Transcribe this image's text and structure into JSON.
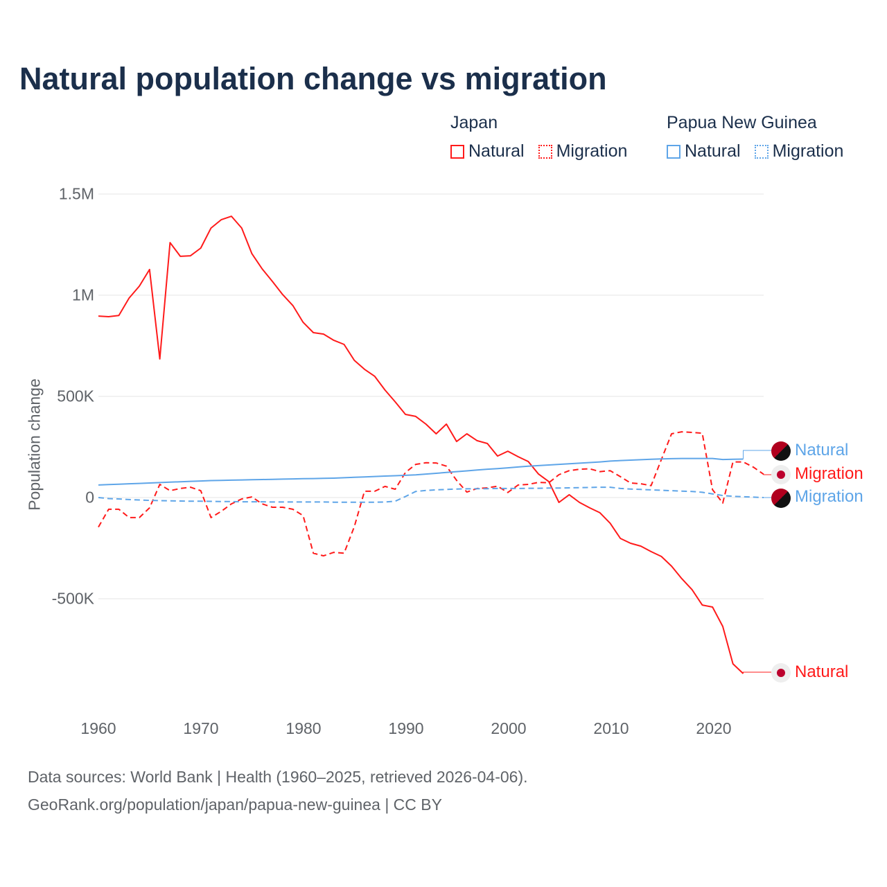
{
  "title": "Natural population change vs migration",
  "legend": {
    "groups": [
      {
        "name": "Japan",
        "items": [
          "Natural",
          "Migration"
        ],
        "color": "#ff1a1a"
      },
      {
        "name": "Papua New Guinea",
        "items": [
          "Natural",
          "Migration"
        ],
        "color": "#5ea5e8"
      }
    ]
  },
  "end_labels": {
    "png_natural": "Natural",
    "japan_migration": "Migration",
    "png_migration": "Migration",
    "japan_natural": "Natural"
  },
  "source": {
    "line1": "Data sources: World Bank | Health (1960–2025, retrieved 2026-04-06).",
    "line2": "GeoRank.org/population/japan/papua-new-guinea | CC BY"
  },
  "chart_data": {
    "type": "line",
    "title": "Natural population change vs migration",
    "xlabel": "",
    "ylabel": "Population change",
    "xlim": [
      1960,
      2025
    ],
    "ylim": [
      -1000000,
      1500000
    ],
    "x_ticks": [
      "1960",
      "1970",
      "1980",
      "1990",
      "2000",
      "2010",
      "2020"
    ],
    "y_ticks": [
      {
        "value": 1500000,
        "label": "1.5M"
      },
      {
        "value": 1000000,
        "label": "1M"
      },
      {
        "value": 500000,
        "label": "500K"
      },
      {
        "value": 0,
        "label": "0"
      },
      {
        "value": -500000,
        "label": "-500K"
      }
    ],
    "grid": true,
    "legend_position": "top-right",
    "x_start": 1960,
    "units": "thousands",
    "series": [
      {
        "name": "Japan Natural",
        "color": "#ff1a1a",
        "dash": "solid",
        "values": [
          897,
          894,
          900,
          986,
          1045,
          1127,
          685,
          1260,
          1192,
          1195,
          1233,
          1332,
          1373,
          1390,
          1332,
          1205,
          1130,
          1068,
          1003,
          949,
          866,
          815,
          808,
          777,
          757,
          678,
          634,
          599,
          531,
          473,
          411,
          401,
          363,
          315,
          363,
          277,
          315,
          281,
          267,
          205,
          229,
          202,
          178,
          116,
          79,
          -24,
          14,
          -24,
          -51,
          -75,
          -127,
          -202,
          -226,
          -240,
          -267,
          -291,
          -339,
          -401,
          -455,
          -531,
          -541,
          -637,
          -822,
          -870
        ]
      },
      {
        "name": "Japan Migration",
        "color": "#ff1a1a",
        "dash": "dashed",
        "values": [
          -146,
          -58,
          -58,
          -99,
          -99,
          -51,
          65,
          34,
          45,
          51,
          34,
          -99,
          -68,
          -31,
          -7,
          3,
          -31,
          -48,
          -48,
          -58,
          -89,
          -275,
          -288,
          -271,
          -275,
          -144,
          31,
          31,
          55,
          41,
          124,
          164,
          172,
          171,
          155,
          85,
          27,
          45,
          48,
          56,
          25,
          62,
          65,
          75,
          73,
          113,
          133,
          140,
          142,
          128,
          133,
          103,
          72,
          68,
          59,
          188,
          315,
          325,
          322,
          318,
          39,
          -27,
          176,
          176,
          150,
          115
        ]
      },
      {
        "name": "Papua New Guinea Natural",
        "color": "#5ea5e8",
        "dash": "solid",
        "values": [
          62,
          64,
          66,
          68,
          70,
          72,
          74,
          76,
          78,
          80,
          82,
          84,
          85,
          86,
          87,
          88,
          89,
          90,
          91,
          92,
          93,
          94,
          95,
          96,
          98,
          100,
          102,
          104,
          106,
          108,
          110,
          112,
          116,
          120,
          124,
          128,
          132,
          136,
          140,
          143,
          147,
          151,
          155,
          158,
          161,
          164,
          167,
          170,
          173,
          176,
          180,
          183,
          185,
          187,
          189,
          191,
          192,
          193,
          193,
          193,
          193,
          188,
          189,
          190
        ]
      },
      {
        "name": "Papua New Guinea Migration",
        "color": "#5ea5e8",
        "dash": "dashed",
        "values": [
          0,
          -5,
          -7,
          -10,
          -12,
          -14,
          -15,
          -16,
          -17,
          -18,
          -18,
          -19,
          -20,
          -20,
          -21,
          -21,
          -21,
          -22,
          -22,
          -22,
          -22,
          -22,
          -22,
          -23,
          -23,
          -23,
          -23,
          -23,
          -22,
          -18,
          5,
          30,
          35,
          38,
          40,
          42,
          43,
          44,
          44,
          45,
          45,
          45,
          46,
          46,
          47,
          47,
          48,
          49,
          50,
          51,
          51,
          45,
          42,
          40,
          38,
          36,
          34,
          32,
          30,
          26,
          18,
          10,
          6,
          4,
          2,
          0
        ]
      }
    ]
  }
}
